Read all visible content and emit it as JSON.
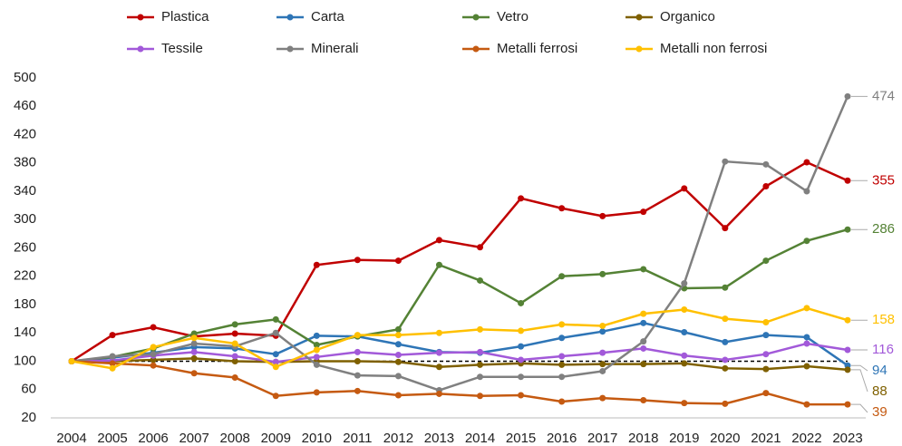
{
  "chart_data": {
    "type": "line",
    "categories": [
      "2004",
      "2005",
      "2006",
      "2007",
      "2008",
      "2009",
      "2010",
      "2011",
      "2012",
      "2013",
      "2014",
      "2015",
      "2016",
      "2017",
      "2018",
      "2019",
      "2020",
      "2021",
      "2022",
      "2023"
    ],
    "ylim": [
      20,
      500
    ],
    "yticks": [
      20,
      60,
      100,
      140,
      180,
      220,
      260,
      300,
      340,
      380,
      420,
      460,
      500
    ],
    "grid": false,
    "reference_line": 100,
    "series": [
      {
        "name": "Plastica",
        "color": "#c00000",
        "values": [
          100,
          137,
          148,
          135,
          139,
          136,
          236,
          243,
          242,
          271,
          261,
          330,
          316,
          305,
          311,
          344,
          288,
          347,
          381,
          355
        ]
      },
      {
        "name": "Carta",
        "color": "#2e75b6",
        "values": [
          100,
          105,
          112,
          120,
          118,
          110,
          136,
          135,
          124,
          113,
          112,
          121,
          133,
          142,
          154,
          141,
          127,
          137,
          134,
          94
        ]
      },
      {
        "name": "Vetro",
        "color": "#548235",
        "values": [
          100,
          106,
          118,
          139,
          152,
          159,
          123,
          135,
          145,
          236,
          214,
          182,
          220,
          223,
          230,
          203,
          204,
          242,
          270,
          286
        ]
      },
      {
        "name": "Organico",
        "color": "#7f6000",
        "values": [
          100,
          100,
          102,
          104,
          100,
          99,
          100,
          100,
          99,
          92,
          95,
          97,
          95,
          96,
          96,
          97,
          90,
          89,
          93,
          88
        ]
      },
      {
        "name": "Tessile",
        "color": "#a259d9",
        "values": [
          100,
          101,
          108,
          113,
          107,
          99,
          106,
          113,
          109,
          112,
          113,
          102,
          107,
          112,
          118,
          108,
          102,
          110,
          125,
          116
        ]
      },
      {
        "name": "Minerali",
        "color": "#808080",
        "values": [
          100,
          107,
          110,
          125,
          121,
          140,
          95,
          80,
          79,
          59,
          78,
          78,
          78,
          86,
          128,
          210,
          382,
          378,
          340,
          474
        ]
      },
      {
        "name": "Metalli ferrosi",
        "color": "#c55a11",
        "values": [
          100,
          97,
          94,
          83,
          77,
          51,
          56,
          58,
          52,
          54,
          51,
          52,
          43,
          48,
          45,
          41,
          40,
          55,
          39,
          39
        ]
      },
      {
        "name": "Metalli non ferrosi",
        "color": "#ffc000",
        "values": [
          100,
          90,
          120,
          133,
          125,
          92,
          116,
          137,
          137,
          140,
          145,
          143,
          152,
          150,
          167,
          173,
          160,
          155,
          175,
          158
        ]
      }
    ]
  }
}
